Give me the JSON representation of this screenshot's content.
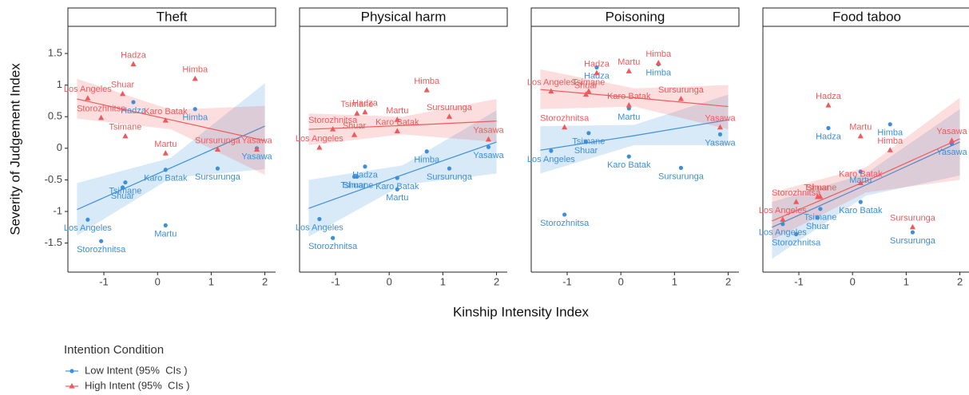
{
  "chart_data": [
    {
      "type": "scatter",
      "title": "Theft",
      "x": [
        -1.05,
        -1.3,
        -0.65,
        -0.6,
        -0.45,
        0.15,
        0.15,
        0.7,
        1.12,
        1.85
      ],
      "point_labels": [
        "Storozhnitsa",
        "Los Angeles",
        "Shuar",
        "Tsimane",
        "Hadza",
        "Karo Batak",
        "Martu",
        "Himba",
        "Sursurunga",
        "Yasawa"
      ],
      "series": [
        {
          "name": "Low Intent (95%  CIs )",
          "color": "#3d8fd9",
          "marker": "circle",
          "values": [
            -1.47,
            -1.13,
            -0.62,
            -0.54,
            0.73,
            -0.34,
            -1.22,
            0.62,
            -0.32,
            0.0
          ],
          "trend": {
            "x": [
              -1.5,
              0.25,
              2
            ],
            "fit": [
              -0.97,
              -0.31,
              0.35
            ],
            "lower": [
              -1.38,
              -0.47,
              -0.33
            ],
            "upper": [
              -0.55,
              -0.15,
              1.03
            ]
          }
        },
        {
          "name": "High Intent (95%  CIs )",
          "color": "#ee5a5c",
          "marker": "triangle",
          "values": [
            0.48,
            0.79,
            0.86,
            0.19,
            1.33,
            0.44,
            -0.08,
            1.1,
            -0.02,
            -0.02
          ],
          "trend": {
            "x": [
              -1.5,
              0.25,
              2
            ],
            "fit": [
              0.78,
              0.45,
              0.12
            ],
            "lower": [
              0.47,
              0.3,
              -0.42
            ],
            "upper": [
              1.1,
              0.61,
              0.67
            ]
          }
        }
      ],
      "xlim": [
        -1.67,
        2.2
      ],
      "xticks": [
        -1,
        0,
        1,
        2
      ],
      "ylim": [
        -1.96,
        1.93
      ],
      "yticks": [
        -1.5,
        -1.0,
        -0.5,
        0.0,
        0.5,
        1.0,
        1.5
      ]
    },
    {
      "type": "scatter",
      "title": "Physical harm",
      "x": [
        -1.05,
        -1.3,
        -0.65,
        -0.6,
        -0.45,
        0.15,
        0.15,
        0.7,
        1.12,
        1.85
      ],
      "point_labels": [
        "Storozhnitsa",
        "Los Angeles",
        "Shuar",
        "Tsimane",
        "Hadza",
        "Karo Batak",
        "Martu",
        "Himba",
        "Sursurunga",
        "Yasawa"
      ],
      "series": [
        {
          "color": "#3d8fd9",
          "marker": "circle",
          "values": [
            -1.42,
            -1.12,
            -0.45,
            -0.45,
            -0.29,
            -0.47,
            -0.65,
            -0.05,
            -0.32,
            0.02
          ],
          "trend": {
            "x": [
              -1.5,
              0.25,
              2
            ],
            "fit": [
              -0.95,
              -0.42,
              0.1
            ],
            "lower": [
              -1.4,
              -0.58,
              -0.4
            ],
            "upper": [
              -0.5,
              -0.27,
              0.6
            ]
          }
        },
        {
          "color": "#ee5a5c",
          "marker": "triangle",
          "values": [
            0.3,
            0.01,
            0.21,
            0.55,
            0.57,
            0.27,
            0.45,
            0.92,
            0.5,
            0.14
          ],
          "trend": {
            "x": [
              -1.5,
              0.25,
              2
            ],
            "fit": [
              0.3,
              0.36,
              0.43
            ],
            "lower": [
              0.05,
              0.22,
              0.1
            ],
            "upper": [
              0.55,
              0.5,
              0.78
            ]
          }
        }
      ],
      "xlim": [
        -1.67,
        2.2
      ],
      "xticks": [
        -1,
        0,
        1,
        2
      ],
      "ylim": [
        -1.96,
        1.93
      ]
    },
    {
      "type": "scatter",
      "title": "Poisoning",
      "x": [
        -1.05,
        -1.3,
        -0.65,
        -0.6,
        -0.45,
        0.15,
        0.15,
        0.7,
        1.12,
        1.85
      ],
      "point_labels": [
        "Storozhnitsa",
        "Los Angeles",
        "Shuar",
        "Tsimane",
        "Hadza",
        "Karo Batak",
        "Martu",
        "Himba",
        "Sursurunga",
        "Yasawa"
      ],
      "series": [
        {
          "color": "#3d8fd9",
          "marker": "circle",
          "values": [
            -1.05,
            -0.04,
            0.1,
            0.24,
            1.28,
            -0.13,
            0.63,
            1.33,
            -0.31,
            0.22
          ],
          "trend": {
            "x": [
              -1.5,
              0.25,
              2
            ],
            "fit": [
              -0.03,
              0.2,
              0.45
            ],
            "lower": [
              -0.4,
              0.05,
              0.05
            ],
            "upper": [
              0.35,
              0.37,
              0.85
            ]
          }
        },
        {
          "color": "#ee5a5c",
          "marker": "triangle",
          "values": [
            0.33,
            0.9,
            0.85,
            0.9,
            1.19,
            0.68,
            1.22,
            1.35,
            0.78,
            0.33
          ],
          "trend": {
            "x": [
              -1.5,
              0.25,
              2
            ],
            "fit": [
              0.93,
              0.8,
              0.66
            ],
            "lower": [
              0.62,
              0.66,
              0.3
            ],
            "upper": [
              1.25,
              0.95,
              1.0
            ]
          }
        }
      ],
      "xlim": [
        -1.67,
        2.2
      ],
      "xticks": [
        -1,
        0,
        1,
        2
      ],
      "ylim": [
        -1.96,
        1.93
      ]
    },
    {
      "type": "scatter",
      "title": "Food taboo",
      "x": [
        -1.05,
        -1.3,
        -0.65,
        -0.6,
        -0.45,
        0.15,
        0.15,
        0.7,
        1.12,
        1.85
      ],
      "point_labels": [
        "Storozhnitsa",
        "Los Angeles",
        "Shuar",
        "Tsimane",
        "Hadza",
        "Karo Batak",
        "Martu",
        "Himba",
        "Sursurunga",
        "Yasawa"
      ],
      "series": [
        {
          "color": "#3d8fd9",
          "marker": "circle",
          "values": [
            -1.36,
            -1.2,
            -1.1,
            -0.96,
            0.32,
            -0.85,
            -0.37,
            0.38,
            -1.33,
            0.07
          ],
          "trend": {
            "x": [
              -1.5,
              0.25,
              2
            ],
            "fit": [
              -1.25,
              -0.58,
              0.1
            ],
            "lower": [
              -1.75,
              -0.75,
              -0.43
            ],
            "upper": [
              -0.85,
              -0.4,
              0.62
            ]
          }
        },
        {
          "color": "#ee5a5c",
          "marker": "triangle",
          "values": [
            -0.85,
            -1.13,
            -0.77,
            -0.77,
            0.68,
            -0.55,
            0.19,
            -0.03,
            -1.25,
            0.12
          ],
          "trend": {
            "x": [
              -1.5,
              0.25,
              2
            ],
            "fit": [
              -1.15,
              -0.52,
              0.15
            ],
            "lower": [
              -1.45,
              -0.7,
              -0.5
            ],
            "upper": [
              -0.7,
              -0.3,
              0.8
            ]
          }
        }
      ],
      "xlim": [
        -1.67,
        2.2
      ],
      "xticks": [
        -1,
        0,
        1,
        2
      ],
      "ylim": [
        -1.96,
        1.93
      ]
    }
  ],
  "x_label": "Kinship Intensity Index",
  "y_label": "Severity of Judgement Index",
  "legend_title": "Intention Condition"
}
